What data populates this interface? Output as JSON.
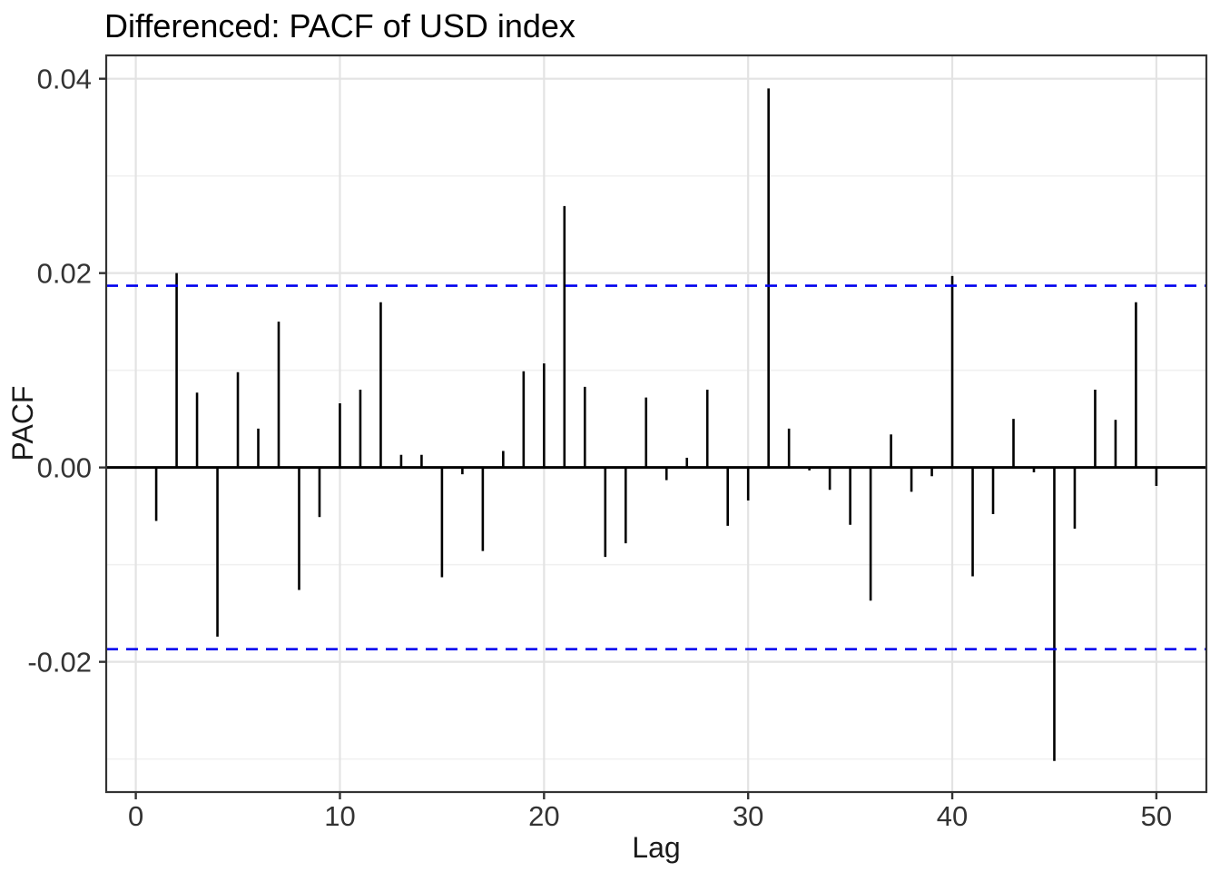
{
  "chart_data": {
    "type": "bar",
    "subtype": "stem-pacf",
    "title": "Differenced: PACF of USD index",
    "xlabel": "Lag",
    "ylabel": "PACF",
    "x": [
      1,
      2,
      3,
      4,
      5,
      6,
      7,
      8,
      9,
      10,
      11,
      12,
      13,
      14,
      15,
      16,
      17,
      18,
      19,
      20,
      21,
      22,
      23,
      24,
      25,
      26,
      27,
      28,
      29,
      30,
      31,
      32,
      33,
      34,
      35,
      36,
      37,
      38,
      39,
      40,
      41,
      42,
      43,
      44,
      45,
      46,
      47,
      48,
      49,
      50
    ],
    "values": [
      -0.0055,
      0.02,
      0.0077,
      -0.0174,
      0.0098,
      0.004,
      0.015,
      -0.0126,
      -0.0051,
      0.0066,
      0.008,
      0.017,
      0.0013,
      0.0013,
      -0.0113,
      -0.0007,
      -0.0086,
      0.0017,
      0.0099,
      0.0107,
      0.0269,
      0.0083,
      -0.0092,
      -0.0078,
      0.0072,
      -0.0013,
      0.001,
      0.008,
      -0.006,
      -0.0034,
      0.039,
      0.004,
      -0.0003,
      -0.0023,
      -0.0059,
      -0.0137,
      0.0034,
      -0.0025,
      -0.0009,
      0.0197,
      -0.0112,
      -0.0048,
      0.005,
      -0.0005,
      -0.0302,
      -0.0063,
      0.008,
      0.0049,
      0.017,
      -0.0019
    ],
    "conf_bounds": [
      0.0187,
      -0.0187
    ],
    "zero_line": 0,
    "x_ticks": [
      {
        "value": 0,
        "label": "0"
      },
      {
        "value": 10,
        "label": "10"
      },
      {
        "value": 20,
        "label": "20"
      },
      {
        "value": 30,
        "label": "30"
      },
      {
        "value": 40,
        "label": "40"
      },
      {
        "value": 50,
        "label": "50"
      }
    ],
    "y_ticks": [
      {
        "value": 0.04,
        "label": "0.04"
      },
      {
        "value": 0.02,
        "label": "0.02"
      },
      {
        "value": 0.0,
        "label": "0.00"
      },
      {
        "value": -0.02,
        "label": "-0.02"
      }
    ],
    "y_minor": [
      0.03,
      0.01,
      -0.01,
      -0.03
    ],
    "xlim": [
      -1.45,
      52.45
    ],
    "ylim": [
      -0.0334,
      0.0424
    ],
    "grid": true,
    "legend_position": "none",
    "colors": {
      "bar": "#000000",
      "zero_line": "#000000",
      "conf_line": "#0000EE",
      "grid_major": "#E3E3E3",
      "grid_minor": "#F0F0F0",
      "panel_border": "#333333",
      "panel_background": "#FFFFFF",
      "title_text": "#000000",
      "axis_title_text": "#1A1A1A",
      "tick_text": "#333333",
      "tick_mark": "#333333"
    }
  }
}
